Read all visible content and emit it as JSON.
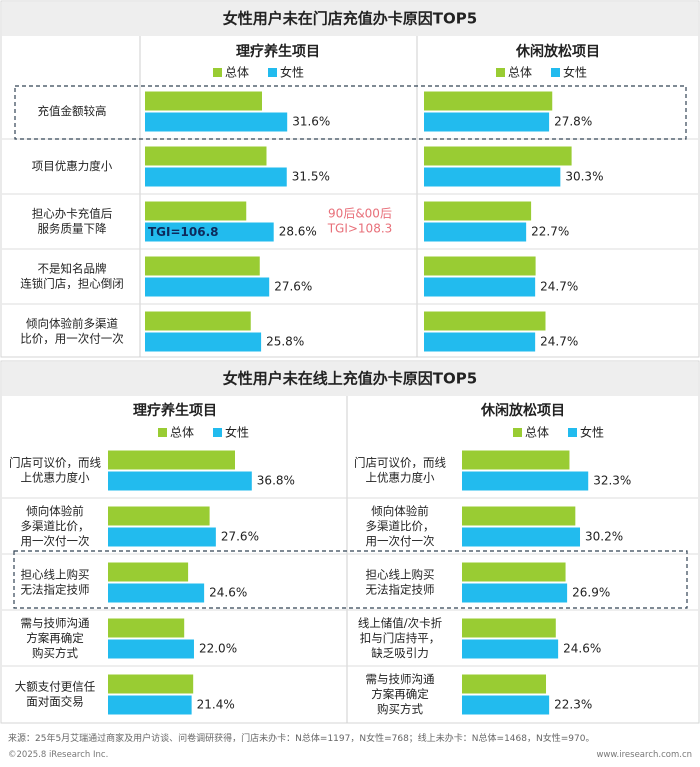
{
  "panels": [
    {
      "title": "女性用户未在门店充值办卡原因TOP5",
      "col_titles": [
        "理疗养生项目",
        "休闲放松项目"
      ],
      "legend": [
        "总体",
        "女性"
      ],
      "rows": [
        {
          "label": [
            "充值金额较高"
          ],
          "highlight": true
        },
        {
          "label": [
            "项目优惠力度小"
          ]
        },
        {
          "label": [
            "担心办卡充值后",
            "服务质量下降"
          ]
        },
        {
          "label": [
            "不是知名品牌",
            "连锁门店，担心倒闭"
          ]
        },
        {
          "label": [
            "倾向体验前多渠道",
            "比价，用一次付一次"
          ]
        }
      ],
      "tgi_box": "TGI=106.8",
      "annotation": [
        "90后&00后",
        "TGI>108.3"
      ]
    },
    {
      "title": "女性用户未在线上充值办卡原因TOP5",
      "col_titles": [
        "理疗养生项目",
        "休闲放松项目"
      ],
      "legend": [
        "总体",
        "女性"
      ],
      "left_labels": [
        [
          "门店可议价，而线",
          "上优惠力度小"
        ],
        [
          "倾向体验前",
          "多渠道比价，",
          "用一次付一次"
        ],
        [
          "担心线上购买",
          "无法指定技师"
        ],
        [
          "需与技师沟通",
          "方案再确定",
          "购买方式"
        ],
        [
          "大额支付更信任",
          "面对面交易"
        ]
      ],
      "right_labels": [
        [
          "门店可议价，而线",
          "上优惠力度小"
        ],
        [
          "倾向体验前",
          "多渠道比价，",
          "用一次付一次"
        ],
        [
          "担心线上购买",
          "无法指定技师"
        ],
        [
          "线上储值/次卡折",
          "扣与门店持平，",
          "缺乏吸引力"
        ],
        [
          "需与技师沟通",
          "方案再确定",
          "购买方式"
        ]
      ],
      "highlight_row": 2
    }
  ],
  "chart_data": [
    {
      "type": "bar",
      "title": "女性用户未在门店充值办卡原因TOP5",
      "subtitle": "理疗养生项目",
      "categories": [
        "充值金额较高",
        "项目优惠力度小",
        "担心办卡充值后服务质量下降",
        "不是知名品牌连锁门店，担心倒闭",
        "倾向体验前多渠道比价，用一次付一次"
      ],
      "series": [
        {
          "name": "总体",
          "values": [
            26.0,
            27.0,
            22.5,
            25.5,
            23.5
          ]
        },
        {
          "name": "女性",
          "values": [
            31.6,
            31.5,
            28.6,
            27.6,
            25.8
          ]
        }
      ],
      "labels": [
        "31.6%",
        "31.5%",
        "28.6%",
        "27.6%",
        "25.8%"
      ],
      "colors": {
        "总体": "#99cc33",
        "女性": "#22bbee"
      }
    },
    {
      "type": "bar",
      "title": "女性用户未在门店充值办卡原因TOP5",
      "subtitle": "休闲放松项目",
      "categories": [
        "充值金额较高",
        "项目优惠力度小",
        "担心办卡充值后服务质量下降",
        "不是知名品牌连锁门店，担心倒闭",
        "倾向体验前多渠道比价，用一次付一次"
      ],
      "series": [
        {
          "name": "总体",
          "values": [
            28.5,
            32.8,
            23.8,
            24.8,
            27.0
          ]
        },
        {
          "name": "女性",
          "values": [
            27.8,
            30.3,
            22.7,
            24.7,
            24.7
          ]
        }
      ],
      "labels": [
        "27.8%",
        "30.3%",
        "22.7%",
        "24.7%",
        "24.7%"
      ],
      "colors": {
        "总体": "#99cc33",
        "女性": "#22bbee"
      }
    },
    {
      "type": "bar",
      "title": "女性用户未在线上充值办卡原因TOP5",
      "subtitle": "理疗养生项目",
      "categories": [
        "门店可议价，而线上优惠力度小",
        "倾向体验前多渠道比价，用一次付一次",
        "担心线上购买无法指定技师",
        "需与技师沟通方案再确定购买方式",
        "大额支付更信任面对面交易"
      ],
      "series": [
        {
          "name": "总体",
          "values": [
            32.5,
            26.0,
            20.5,
            19.5,
            21.8
          ]
        },
        {
          "name": "女性",
          "values": [
            36.8,
            27.6,
            24.6,
            22.0,
            21.4
          ]
        }
      ],
      "labels": [
        "36.8%",
        "27.6%",
        "24.6%",
        "22.0%",
        "21.4%"
      ],
      "colors": {
        "总体": "#99cc33",
        "女性": "#22bbee"
      }
    },
    {
      "type": "bar",
      "title": "女性用户未在线上充值办卡原因TOP5",
      "subtitle": "休闲放松项目",
      "categories": [
        "门店可议价，而线上优惠力度小",
        "倾向体验前多渠道比价，用一次付一次",
        "担心线上购买无法指定技师",
        "线上储值/次卡折扣与门店持平，缺乏吸引力",
        "需与技师沟通方案再确定购买方式"
      ],
      "series": [
        {
          "name": "总体",
          "values": [
            27.5,
            29.0,
            26.5,
            24.0,
            21.5
          ]
        },
        {
          "name": "女性",
          "values": [
            32.3,
            30.2,
            26.9,
            24.6,
            22.3
          ]
        }
      ],
      "labels": [
        "32.3%",
        "30.2%",
        "26.9%",
        "24.6%",
        "22.3%"
      ],
      "colors": {
        "总体": "#99cc33",
        "女性": "#22bbee"
      }
    }
  ],
  "footer": {
    "source": "来源：25年5月艾瑞通过商家及用户访谈、问卷调研获得，门店未办卡：N总体=1197，N女性=768；线上未办卡：N总体=1468，N女性=970。",
    "copyright": "©2025.8 iResearch Inc.",
    "site": "www.iresearch.com.cn"
  },
  "colors": {
    "overall": "#99cc33",
    "female": "#22bbee",
    "header_bg": "#eeeeee",
    "highlight_border": "#334455",
    "annotation": "#e8707a",
    "tgi_text": "#0d2a5c"
  }
}
